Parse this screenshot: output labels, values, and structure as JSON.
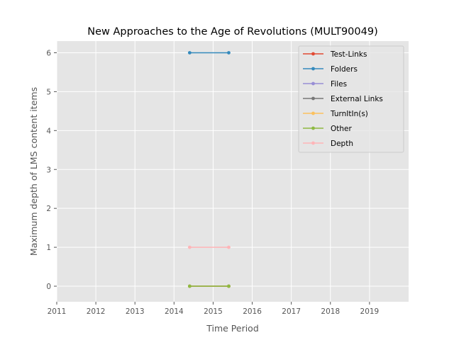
{
  "chart_data": {
    "type": "line",
    "title": "New Approaches to the Age of Revolutions (MULT90049)",
    "xlabel": "Time Period",
    "ylabel": "Maximum depth of LMS content items",
    "xlim": [
      2011,
      2020
    ],
    "ylim": [
      -0.4,
      6.3
    ],
    "xticks": [
      "2011",
      "2012",
      "2013",
      "2014",
      "2015",
      "2016",
      "2017",
      "2018",
      "2019"
    ],
    "yticks": [
      "0",
      "1",
      "2",
      "3",
      "4",
      "5",
      "6"
    ],
    "grid": true,
    "legend_position": "top-right",
    "series": [
      {
        "name": "Test-Links",
        "color": "#E24A33",
        "x": [
          2014.4,
          2015.4
        ],
        "y": [
          0,
          0
        ]
      },
      {
        "name": "Folders",
        "color": "#348ABD",
        "x": [
          2014.4,
          2015.4
        ],
        "y": [
          6,
          6
        ]
      },
      {
        "name": "Files",
        "color": "#988ED5",
        "x": [
          2014.4,
          2015.4
        ],
        "y": [
          0,
          0
        ]
      },
      {
        "name": "External Links",
        "color": "#777777",
        "x": [
          2014.4,
          2015.4
        ],
        "y": [
          0,
          0
        ]
      },
      {
        "name": "TurnItIn(s)",
        "color": "#FBC15E",
        "x": [
          2014.4,
          2015.4
        ],
        "y": [
          0,
          0
        ]
      },
      {
        "name": "Other",
        "color": "#8EBA42",
        "x": [
          2014.4,
          2015.4
        ],
        "y": [
          0,
          0
        ]
      },
      {
        "name": "Depth",
        "color": "#FFB5B8",
        "x": [
          2014.4,
          2015.4
        ],
        "y": [
          1,
          1
        ]
      }
    ]
  }
}
